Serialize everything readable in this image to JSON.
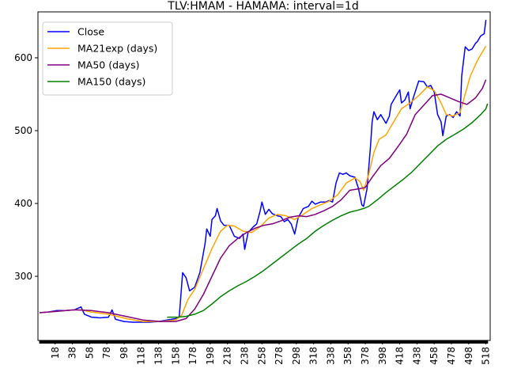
{
  "chart_data": {
    "type": "line",
    "title": "TLV:HMAM - HAMAMA: interval=1d",
    "xlabel": "",
    "ylabel": "",
    "xlim": [
      -2,
      523
    ],
    "ylim": [
      212,
      663
    ],
    "x_ticks": [
      18,
      38,
      58,
      78,
      98,
      118,
      138,
      158,
      178,
      198,
      218,
      238,
      258,
      278,
      298,
      318,
      338,
      358,
      378,
      398,
      418,
      438,
      458,
      478,
      498,
      518
    ],
    "y_ticks": [
      300,
      400,
      500,
      600
    ],
    "legend_position": "upper left",
    "grid": false,
    "series": [
      {
        "name": "Close",
        "color": "#0000ff",
        "points": [
          [
            0,
            250
          ],
          [
            10,
            251
          ],
          [
            20,
            253
          ],
          [
            30,
            253
          ],
          [
            40,
            254
          ],
          [
            48,
            258
          ],
          [
            52,
            248
          ],
          [
            60,
            244
          ],
          [
            70,
            243
          ],
          [
            80,
            244
          ],
          [
            84,
            254
          ],
          [
            88,
            241
          ],
          [
            98,
            238
          ],
          [
            108,
            237
          ],
          [
            118,
            237
          ],
          [
            128,
            237
          ],
          [
            138,
            238
          ],
          [
            148,
            240
          ],
          [
            158,
            242
          ],
          [
            162,
            244
          ],
          [
            166,
            305
          ],
          [
            170,
            298
          ],
          [
            174,
            280
          ],
          [
            180,
            285
          ],
          [
            186,
            305
          ],
          [
            192,
            345
          ],
          [
            194,
            365
          ],
          [
            198,
            355
          ],
          [
            200,
            378
          ],
          [
            204,
            383
          ],
          [
            206,
            393
          ],
          [
            210,
            376
          ],
          [
            214,
            370
          ],
          [
            220,
            370
          ],
          [
            226,
            355
          ],
          [
            232,
            352
          ],
          [
            236,
            358
          ],
          [
            238,
            337
          ],
          [
            242,
            360
          ],
          [
            248,
            368
          ],
          [
            252,
            372
          ],
          [
            256,
            390
          ],
          [
            258,
            402
          ],
          [
            262,
            385
          ],
          [
            266,
            392
          ],
          [
            270,
            386
          ],
          [
            276,
            383
          ],
          [
            280,
            382
          ],
          [
            284,
            375
          ],
          [
            288,
            378
          ],
          [
            292,
            372
          ],
          [
            296,
            358
          ],
          [
            300,
            380
          ],
          [
            306,
            393
          ],
          [
            312,
            396
          ],
          [
            316,
            403
          ],
          [
            320,
            399
          ],
          [
            326,
            402
          ],
          [
            332,
            402
          ],
          [
            336,
            404
          ],
          [
            340,
            402
          ],
          [
            344,
            428
          ],
          [
            348,
            442
          ],
          [
            352,
            440
          ],
          [
            356,
            442
          ],
          [
            360,
            438
          ],
          [
            366,
            436
          ],
          [
            370,
            421
          ],
          [
            374,
            398
          ],
          [
            376,
            396
          ],
          [
            380,
            420
          ],
          [
            384,
            478
          ],
          [
            386,
            512
          ],
          [
            388,
            526
          ],
          [
            392,
            515
          ],
          [
            396,
            522
          ],
          [
            402,
            510
          ],
          [
            406,
            520
          ],
          [
            408,
            536
          ],
          [
            414,
            548
          ],
          [
            418,
            556
          ],
          [
            420,
            538
          ],
          [
            424,
            542
          ],
          [
            428,
            553
          ],
          [
            430,
            530
          ],
          [
            434,
            546
          ],
          [
            440,
            568
          ],
          [
            446,
            567
          ],
          [
            450,
            560
          ],
          [
            454,
            562
          ],
          [
            458,
            553
          ],
          [
            462,
            522
          ],
          [
            466,
            512
          ],
          [
            468,
            493
          ],
          [
            472,
            520
          ],
          [
            476,
            522
          ],
          [
            480,
            518
          ],
          [
            484,
            526
          ],
          [
            488,
            520
          ],
          [
            490,
            575
          ],
          [
            494,
            615
          ],
          [
            498,
            610
          ],
          [
            502,
            612
          ],
          [
            506,
            620
          ],
          [
            508,
            622
          ],
          [
            512,
            630
          ],
          [
            516,
            633
          ],
          [
            518,
            652
          ]
        ]
      },
      {
        "name": "MA21exp (days)",
        "color": "#ffa500",
        "points": [
          [
            0,
            250
          ],
          [
            20,
            252
          ],
          [
            40,
            254
          ],
          [
            48,
            254
          ],
          [
            60,
            251
          ],
          [
            80,
            248
          ],
          [
            100,
            242
          ],
          [
            120,
            238
          ],
          [
            140,
            238
          ],
          [
            158,
            240
          ],
          [
            165,
            247
          ],
          [
            172,
            268
          ],
          [
            180,
            282
          ],
          [
            190,
            310
          ],
          [
            200,
            338
          ],
          [
            210,
            362
          ],
          [
            218,
            370
          ],
          [
            226,
            369
          ],
          [
            236,
            362
          ],
          [
            246,
            360
          ],
          [
            256,
            368
          ],
          [
            266,
            380
          ],
          [
            276,
            385
          ],
          [
            286,
            383
          ],
          [
            296,
            378
          ],
          [
            306,
            385
          ],
          [
            316,
            393
          ],
          [
            326,
            398
          ],
          [
            336,
            403
          ],
          [
            346,
            412
          ],
          [
            356,
            428
          ],
          [
            366,
            435
          ],
          [
            372,
            430
          ],
          [
            376,
            418
          ],
          [
            382,
            440
          ],
          [
            388,
            470
          ],
          [
            394,
            488
          ],
          [
            402,
            494
          ],
          [
            410,
            510
          ],
          [
            420,
            530
          ],
          [
            430,
            538
          ],
          [
            440,
            548
          ],
          [
            450,
            560
          ],
          [
            458,
            555
          ],
          [
            466,
            538
          ],
          [
            472,
            522
          ],
          [
            480,
            520
          ],
          [
            488,
            525
          ],
          [
            494,
            550
          ],
          [
            500,
            575
          ],
          [
            508,
            596
          ],
          [
            514,
            608
          ],
          [
            518,
            616
          ]
        ]
      },
      {
        "name": "MA50 (days)",
        "color": "#800080",
        "points": [
          [
            0,
            250
          ],
          [
            20,
            252
          ],
          [
            40,
            254
          ],
          [
            60,
            253
          ],
          [
            80,
            250
          ],
          [
            100,
            245
          ],
          [
            120,
            240
          ],
          [
            140,
            238
          ],
          [
            158,
            238
          ],
          [
            170,
            242
          ],
          [
            180,
            255
          ],
          [
            190,
            275
          ],
          [
            200,
            300
          ],
          [
            210,
            325
          ],
          [
            220,
            342
          ],
          [
            230,
            352
          ],
          [
            240,
            360
          ],
          [
            250,
            366
          ],
          [
            260,
            370
          ],
          [
            270,
            372
          ],
          [
            280,
            376
          ],
          [
            290,
            381
          ],
          [
            300,
            383
          ],
          [
            310,
            382
          ],
          [
            320,
            385
          ],
          [
            330,
            390
          ],
          [
            340,
            396
          ],
          [
            350,
            405
          ],
          [
            360,
            418
          ],
          [
            370,
            420
          ],
          [
            378,
            422
          ],
          [
            386,
            436
          ],
          [
            396,
            452
          ],
          [
            406,
            462
          ],
          [
            416,
            478
          ],
          [
            426,
            495
          ],
          [
            436,
            522
          ],
          [
            446,
            535
          ],
          [
            456,
            548
          ],
          [
            466,
            550
          ],
          [
            476,
            545
          ],
          [
            486,
            540
          ],
          [
            496,
            536
          ],
          [
            506,
            545
          ],
          [
            514,
            558
          ],
          [
            518,
            570
          ]
        ]
      },
      {
        "name": "MA150 (days)",
        "color": "#008000",
        "points": [
          [
            148,
            244
          ],
          [
            160,
            244
          ],
          [
            170,
            245
          ],
          [
            180,
            248
          ],
          [
            190,
            253
          ],
          [
            200,
            262
          ],
          [
            210,
            272
          ],
          [
            220,
            280
          ],
          [
            230,
            287
          ],
          [
            240,
            293
          ],
          [
            250,
            300
          ],
          [
            260,
            308
          ],
          [
            270,
            317
          ],
          [
            280,
            326
          ],
          [
            290,
            335
          ],
          [
            300,
            344
          ],
          [
            310,
            352
          ],
          [
            320,
            362
          ],
          [
            330,
            370
          ],
          [
            340,
            377
          ],
          [
            350,
            383
          ],
          [
            360,
            388
          ],
          [
            370,
            391
          ],
          [
            376,
            393
          ],
          [
            382,
            396
          ],
          [
            392,
            405
          ],
          [
            402,
            415
          ],
          [
            412,
            424
          ],
          [
            422,
            433
          ],
          [
            432,
            443
          ],
          [
            442,
            455
          ],
          [
            452,
            467
          ],
          [
            462,
            479
          ],
          [
            472,
            488
          ],
          [
            482,
            495
          ],
          [
            492,
            502
          ],
          [
            502,
            511
          ],
          [
            512,
            522
          ],
          [
            518,
            530
          ],
          [
            520,
            537
          ]
        ]
      }
    ]
  }
}
